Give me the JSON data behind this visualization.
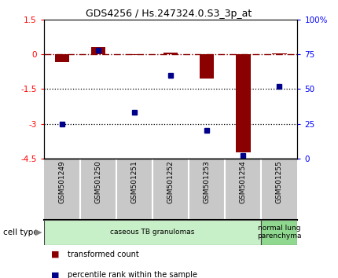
{
  "title": "GDS4256 / Hs.247324.0.S3_3p_at",
  "samples": [
    "GSM501249",
    "GSM501250",
    "GSM501251",
    "GSM501252",
    "GSM501253",
    "GSM501254",
    "GSM501255"
  ],
  "transformed_count": [
    -0.35,
    0.32,
    -0.04,
    0.07,
    -1.05,
    -4.25,
    0.04
  ],
  "percentile_rank": [
    25,
    78,
    33,
    60,
    20,
    2,
    52
  ],
  "ylim_left": [
    -4.5,
    1.5
  ],
  "yticks_left": [
    1.5,
    0,
    -1.5,
    -3,
    -4.5
  ],
  "ytick_labels_left": [
    "1.5",
    "0",
    "-1.5",
    "-3",
    "-4.5"
  ],
  "ylim_right": [
    0,
    100
  ],
  "yticks_right": [
    0,
    25,
    50,
    75,
    100
  ],
  "ytick_labels_right": [
    "0",
    "25",
    "50",
    "75",
    "100%"
  ],
  "hline_y": 0,
  "dotted_lines": [
    -1.5,
    -3.0
  ],
  "bar_color": "#8B0000",
  "dot_color": "#00008B",
  "bar_width": 0.4,
  "cell_type_groups": [
    {
      "label": "caseous TB granulomas",
      "samples": [
        0,
        1,
        2,
        3,
        4,
        5
      ],
      "color": "#c8f0c8"
    },
    {
      "label": "normal lung\nparenchyma",
      "samples": [
        6
      ],
      "color": "#90d890"
    }
  ],
  "legend_bar_label": "transformed count",
  "legend_dot_label": "percentile rank within the sample",
  "cell_type_label": "cell type",
  "xlabel_bg_color": "#c8c8c8",
  "background_color": "#ffffff",
  "plot_bg_color": "#ffffff"
}
